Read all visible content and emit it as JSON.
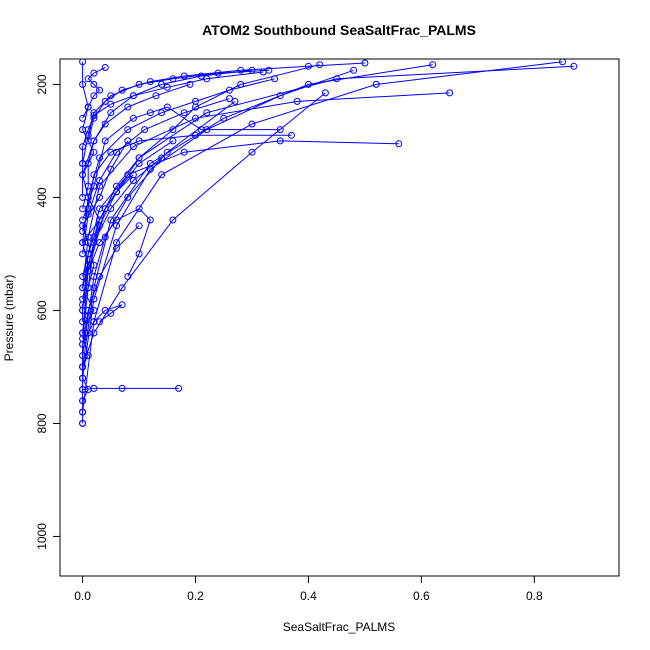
{
  "chart_data": {
    "type": "line",
    "title": "ATOM2 Southbound SeaSaltFrac_PALMS",
    "xlabel": "SeaSaltFrac_PALMS",
    "ylabel": "Pressure (mbar)",
    "xlim": [
      -0.04,
      0.95
    ],
    "ylim": [
      1070,
      155
    ],
    "y_reversed": true,
    "grid": false,
    "x_ticks": [
      0.0,
      0.2,
      0.4,
      0.6,
      0.8
    ],
    "x_tick_labels": [
      "0.0",
      "0.2",
      "0.4",
      "0.6",
      "0.8"
    ],
    "y_ticks": [
      200,
      400,
      600,
      800,
      1000
    ],
    "y_tick_labels": [
      "200",
      "400",
      "600",
      "800",
      "1000"
    ],
    "series_color": "#0000ff",
    "marker": "open-circle",
    "series": [
      {
        "x": [
          0.0,
          0.0,
          0.01,
          0.0,
          0.02,
          0.0,
          0.01,
          0.03,
          0.0,
          0.01,
          0.0,
          0.02,
          0.0,
          0.01,
          0.0,
          0.0,
          0.01,
          0.0,
          0.0,
          0.0,
          0.0
        ],
        "y": [
          160,
          200,
          240,
          280,
          320,
          360,
          400,
          440,
          480,
          520,
          560,
          600,
          640,
          680,
          700,
          720,
          740,
          760,
          780,
          800,
          800
        ]
      },
      {
        "x": [
          0.01,
          0.03,
          0.06,
          0.1,
          0.16,
          0.2,
          0.28,
          0.42
        ],
        "y": [
          520,
          440,
          380,
          330,
          280,
          240,
          200,
          165
        ]
      },
      {
        "x": [
          0.0,
          0.02,
          0.05,
          0.12,
          0.25,
          0.4,
          0.62
        ],
        "y": [
          700,
          560,
          440,
          340,
          260,
          200,
          165
        ]
      },
      {
        "x": [
          0.0,
          0.01,
          0.03,
          0.08,
          0.18,
          0.35,
          0.56
        ],
        "y": [
          600,
          500,
          420,
          360,
          320,
          300,
          305
        ]
      },
      {
        "x": [
          0.0,
          0.01,
          0.03,
          0.09,
          0.2,
          0.38,
          0.65
        ],
        "y": [
          560,
          470,
          380,
          310,
          260,
          230,
          215
        ]
      },
      {
        "x": [
          0.0,
          0.0,
          0.02,
          0.07,
          0.17
        ],
        "y": [
          760,
          740,
          738,
          738,
          738
        ]
      },
      {
        "x": [
          0.0,
          0.02,
          0.06,
          0.14,
          0.3,
          0.52,
          0.85
        ],
        "y": [
          780,
          620,
          480,
          360,
          270,
          200,
          160
        ]
      },
      {
        "x": [
          0.0,
          0.01,
          0.04,
          0.1,
          0.22,
          0.45,
          0.87
        ],
        "y": [
          640,
          530,
          420,
          330,
          250,
          190,
          168
        ]
      },
      {
        "x": [
          0.0,
          0.01,
          0.03,
          0.08,
          0.14,
          0.2,
          0.26,
          0.34
        ],
        "y": [
          480,
          400,
          330,
          280,
          250,
          230,
          210,
          190
        ]
      },
      {
        "x": [
          0.0,
          0.02,
          0.04,
          0.09,
          0.12,
          0.15,
          0.21,
          0.35
        ],
        "y": [
          440,
          380,
          300,
          260,
          250,
          240,
          280,
          280
        ]
      },
      {
        "x": [
          0.0,
          0.01,
          0.02,
          0.05,
          0.1,
          0.2,
          0.37
        ],
        "y": [
          460,
          420,
          360,
          320,
          300,
          290,
          290
        ]
      },
      {
        "x": [
          0.0,
          0.01,
          0.03,
          0.06,
          0.1,
          0.12,
          0.1,
          0.08
        ],
        "y": [
          580,
          530,
          480,
          440,
          420,
          440,
          500,
          540
        ]
      },
      {
        "x": [
          0.0,
          0.01,
          0.02,
          0.04,
          0.07,
          0.05,
          0.03
        ],
        "y": [
          660,
          640,
          620,
          600,
          590,
          605,
          620
        ]
      },
      {
        "x": [
          0.01,
          0.02,
          0.04,
          0.07,
          0.12,
          0.18,
          0.28,
          0.4,
          0.5
        ],
        "y": [
          300,
          260,
          230,
          210,
          195,
          185,
          175,
          168,
          162
        ]
      },
      {
        "x": [
          0.0,
          0.02,
          0.05,
          0.09,
          0.14,
          0.21,
          0.3
        ],
        "y": [
          360,
          300,
          250,
          220,
          200,
          185,
          175
        ]
      },
      {
        "x": [
          0.0,
          0.0,
          0.01,
          0.02,
          0.05,
          0.1,
          0.16,
          0.24,
          0.33
        ],
        "y": [
          400,
          340,
          290,
          250,
          220,
          200,
          190,
          180,
          175
        ]
      },
      {
        "x": [
          0.0,
          0.01,
          0.02,
          0.03,
          0.04,
          0.06,
          0.09
        ],
        "y": [
          540,
          500,
          470,
          440,
          420,
          390,
          360
        ]
      },
      {
        "x": [
          0.0,
          0.0,
          0.01,
          0.02,
          0.01,
          0.0,
          0.03,
          0.05,
          0.08
        ],
        "y": [
          620,
          590,
          560,
          520,
          480,
          450,
          400,
          350,
          300
        ]
      },
      {
        "x": [
          0.0,
          0.02,
          0.06,
          0.12,
          0.22,
          0.35,
          0.48
        ],
        "y": [
          720,
          580,
          450,
          350,
          280,
          220,
          175
        ]
      },
      {
        "x": [
          0.0,
          0.01,
          0.02,
          0.04,
          0.08,
          0.15,
          0.27
        ],
        "y": [
          680,
          610,
          540,
          470,
          400,
          320,
          230
        ]
      },
      {
        "x": [
          0.0,
          0.0,
          0.02,
          0.07,
          0.16,
          0.3,
          0.43
        ],
        "y": [
          740,
          700,
          640,
          560,
          440,
          320,
          215
        ]
      },
      {
        "x": [
          0.0,
          0.01,
          0.02,
          0.03,
          0.02,
          0.01,
          0.02,
          0.04
        ],
        "y": [
          260,
          240,
          220,
          210,
          200,
          190,
          180,
          170
        ]
      },
      {
        "x": [
          0.0,
          0.01,
          0.03,
          0.06,
          0.11,
          0.18,
          0.26
        ],
        "y": [
          500,
          430,
          370,
          320,
          280,
          250,
          225
        ]
      },
      {
        "x": [
          0.0,
          0.01,
          0.01,
          0.02,
          0.04,
          0.08,
          0.13,
          0.19
        ],
        "y": [
          420,
          380,
          340,
          300,
          270,
          240,
          220,
          200
        ]
      },
      {
        "x": [
          0.0,
          0.0,
          0.01,
          0.02,
          0.05,
          0.09,
          0.15,
          0.22,
          0.32
        ],
        "y": [
          340,
          310,
          280,
          255,
          235,
          220,
          205,
          190,
          178
        ]
      },
      {
        "x": [
          0.0,
          0.01,
          0.03,
          0.06,
          0.1,
          0.16
        ],
        "y": [
          600,
          520,
          450,
          390,
          340,
          300
        ]
      },
      {
        "x": [
          0.0,
          0.01,
          0.02,
          0.05,
          0.09,
          0.14
        ],
        "y": [
          650,
          560,
          480,
          420,
          370,
          330
        ]
      },
      {
        "x": [
          0.0,
          0.0,
          0.01,
          0.03,
          0.06,
          0.1
        ],
        "y": [
          720,
          660,
          600,
          540,
          490,
          450
        ]
      }
    ]
  }
}
